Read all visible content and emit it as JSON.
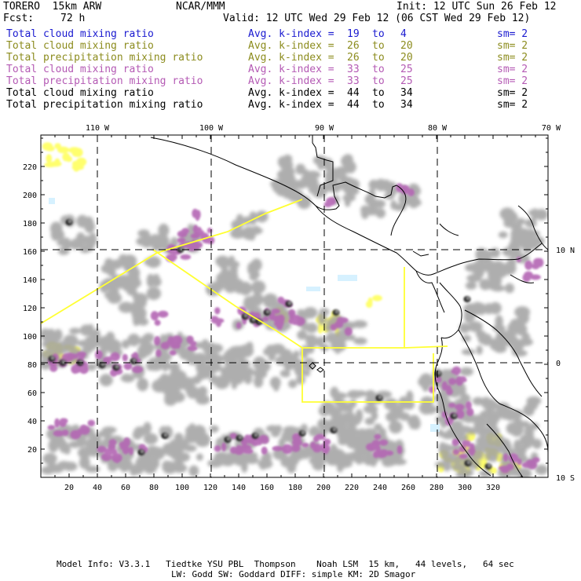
{
  "header": {
    "model": "TORERO  15km ARW",
    "org": "NCAR/MMM",
    "init": "Init: 12 UTC Sun 26 Feb 12",
    "fcst_label": "Fcst:",
    "fcst_hours": "72 h",
    "valid": "Valid: 12 UTC Wed 29 Feb 12 (06 CST Wed 29 Feb 12)"
  },
  "legend": [
    {
      "field": "Total cloud mixing ratio",
      "index_label": "Avg. k-index =",
      "from": "19",
      "to_word": "to",
      "to": "4",
      "sm": "sm= 2",
      "color": "#1a1ad0"
    },
    {
      "field": "Total cloud mixing ratio",
      "index_label": "Avg. k-index =",
      "from": "26",
      "to_word": "to",
      "to": "20",
      "sm": "sm= 2",
      "color": "#8c8c1e"
    },
    {
      "field": "Total precipitation mixing ratio",
      "index_label": "Avg. k-index =",
      "from": "26",
      "to_word": "to",
      "to": "20",
      "sm": "sm= 2",
      "color": "#8c8c1e"
    },
    {
      "field": "Total cloud mixing ratio",
      "index_label": "Avg. k-index =",
      "from": "33",
      "to_word": "to",
      "to": "25",
      "sm": "sm= 2",
      "color": "#b45ab4"
    },
    {
      "field": "Total precipitation mixing ratio",
      "index_label": "Avg. k-index =",
      "from": "33",
      "to_word": "to",
      "to": "25",
      "sm": "sm= 2",
      "color": "#b45ab4"
    },
    {
      "field": "Total cloud mixing ratio",
      "index_label": "Avg. k-index =",
      "from": "44",
      "to_word": "to",
      "to": "34",
      "sm": "sm= 2",
      "color": "#000000"
    },
    {
      "field": "Total precipitation mixing ratio",
      "index_label": "Avg. k-index =",
      "from": "44",
      "to_word": "to",
      "to": "34",
      "sm": "sm= 2",
      "color": "#000000"
    }
  ],
  "map": {
    "x_ticks": [
      "20",
      "40",
      "60",
      "80",
      "100",
      "120",
      "140",
      "160",
      "180",
      "200",
      "220",
      "240",
      "260",
      "280",
      "300",
      "320"
    ],
    "y_ticks": [
      "20",
      "40",
      "60",
      "80",
      "100",
      "120",
      "140",
      "160",
      "180",
      "200",
      "220"
    ],
    "lon_labels": [
      "110 W",
      "100 W",
      "90 W",
      "80 W",
      "70 W"
    ],
    "lat_labels": [
      "10 N",
      "0",
      "10 S"
    ],
    "colors": {
      "light_cloud": "#ffff66",
      "cloud": "#a0a0a0",
      "precip": "#b466b4",
      "dense": "#202020",
      "trajectory": "#ffff33",
      "coast": "#000000",
      "ice": "#cceeff"
    }
  },
  "footer": {
    "line1": "Model Info: V3.3.1   Tiedtke YSU PBL  Thompson    Noah LSM  15 km,   44 levels,   64 sec",
    "line2": "LW: Godd SW: Goddard DIFF: simple KM: 2D Smagor"
  }
}
